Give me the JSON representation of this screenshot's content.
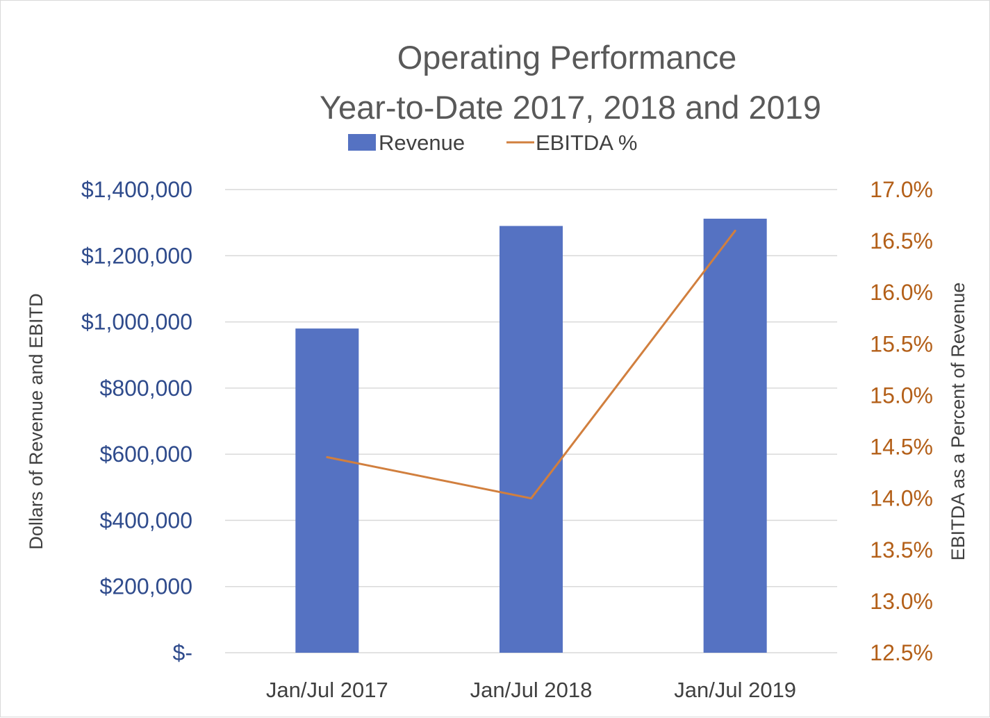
{
  "chart_data": {
    "type": "bar",
    "title": "Operating Performance",
    "subtitle": "Year-to-Date 2017, 2018 and 2019",
    "categories": [
      "Jan/Jul 2017",
      "Jan/Jul 2018",
      "Jan/Jul 2019"
    ],
    "series": [
      {
        "name": "Revenue",
        "type": "bar",
        "axis": "left",
        "color": "#5572c2",
        "values": [
          980000,
          1290000,
          1312000
        ]
      },
      {
        "name": "EBITDA %",
        "type": "line",
        "axis": "right",
        "color": "#d17f3e",
        "values": [
          14.4,
          14.0,
          16.6
        ]
      }
    ],
    "ylabel": "Dollars of Revenue and EBITD",
    "y2label": "EBITDA as a Percent of Revenue",
    "ylim": [
      0,
      1400000
    ],
    "y2lim": [
      12.5,
      17.0
    ],
    "yticks": [
      0,
      200000,
      400000,
      600000,
      800000,
      1000000,
      1200000,
      1400000
    ],
    "ytick_labels": [
      "$-",
      "$200,000",
      "$400,000",
      "$600,000",
      "$800,000",
      "$1,000,000",
      "$1,200,000",
      "$1,400,000"
    ],
    "y2ticks": [
      12.5,
      13.0,
      13.5,
      14.0,
      14.5,
      15.0,
      15.5,
      16.0,
      16.5,
      17.0
    ],
    "y2tick_labels": [
      "12.5%",
      "13.0%",
      "13.5%",
      "14.0%",
      "14.5%",
      "15.0%",
      "15.5%",
      "16.0%",
      "16.5%",
      "17.0%"
    ],
    "grid": true,
    "legend_position": "top"
  }
}
